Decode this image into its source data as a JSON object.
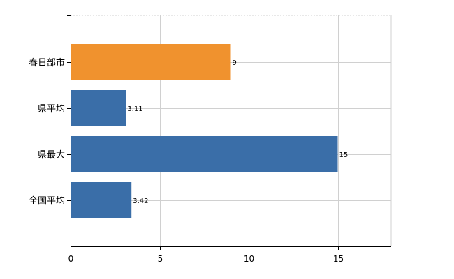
{
  "chart_data": {
    "type": "bar",
    "orientation": "horizontal",
    "categories": [
      "春日部市",
      "県平均",
      "県最大",
      "全国平均"
    ],
    "values": [
      9,
      3.11,
      15,
      3.42
    ],
    "value_labels": [
      "9",
      "3.11",
      "15",
      "3.42"
    ],
    "bar_colors": [
      "#f0922e",
      "#3a6ea8",
      "#3a6ea8",
      "#3a6ea8"
    ],
    "xlim": [
      0,
      18
    ],
    "x_ticks": [
      0,
      5,
      10,
      15
    ],
    "grid": true,
    "title": "",
    "xlabel": "",
    "ylabel": ""
  }
}
